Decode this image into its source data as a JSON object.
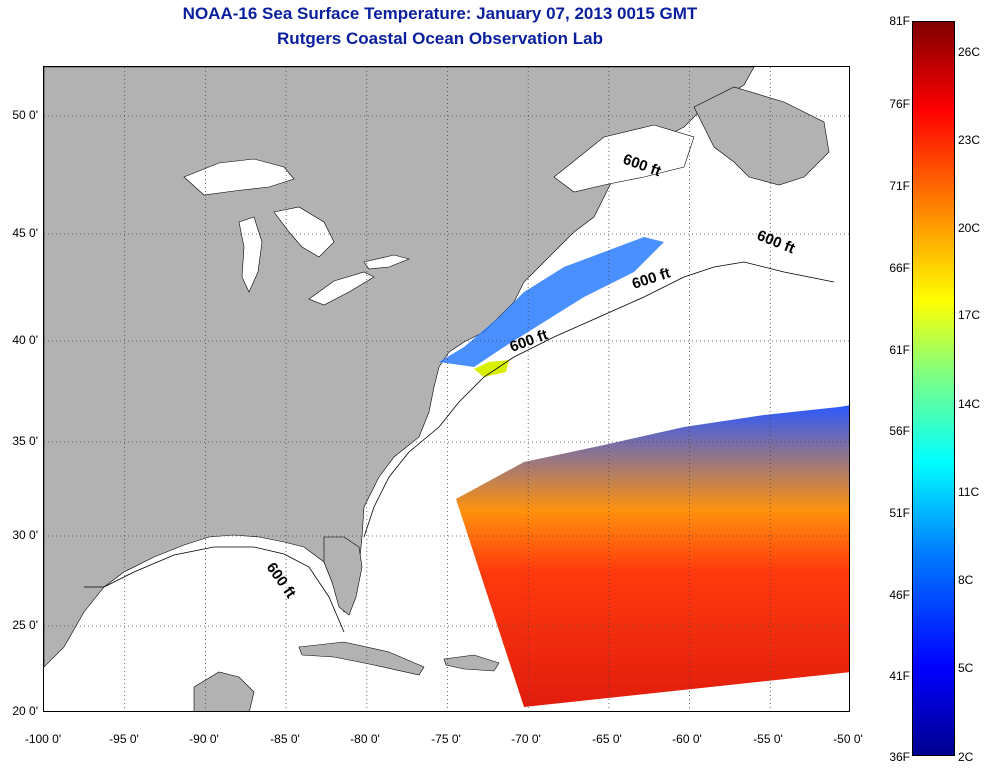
{
  "header": {
    "title_line1": "NOAA-16 Sea Surface Temperature:  January 07, 2013 0015 GMT",
    "title_line2": "Rutgers Coastal Ocean Observation Lab"
  },
  "map": {
    "lon_range": [
      -100,
      -50
    ],
    "lat_range": [
      20,
      52.5
    ],
    "grid": "dotted",
    "y_ticks": [
      "50 0'",
      "45 0'",
      "40 0'",
      "35 0'",
      "30 0'",
      "25 0'",
      "20 0'"
    ],
    "x_ticks": [
      "-100 0'",
      "-95 0'",
      "-90 0'",
      "-85 0'",
      "-80 0'",
      "-75 0'",
      "-70 0'",
      "-65 0'",
      "-60 0'",
      "-55 0'",
      "-50 0'"
    ],
    "depth_contour_labels": [
      "600 ft",
      "600 ft",
      "600 ft",
      "600 ft",
      "600 ft"
    ],
    "colors": {
      "land": "#b2b2b2",
      "water": "#ffffff"
    }
  },
  "colorbar": {
    "fahrenheit_labels": [
      "81F",
      "76F",
      "71F",
      "66F",
      "61F",
      "56F",
      "51F",
      "46F",
      "41F",
      "36F"
    ],
    "celsius_labels": [
      "26C",
      "23C",
      "20C",
      "17C",
      "14C",
      "11C",
      "8C",
      "5C",
      "2C"
    ],
    "colormap": "jet",
    "colors": [
      "#00008f",
      "#0000ff",
      "#0080ff",
      "#00ffff",
      "#80ff80",
      "#ffff00",
      "#ff8000",
      "#ff0000",
      "#800000"
    ]
  }
}
